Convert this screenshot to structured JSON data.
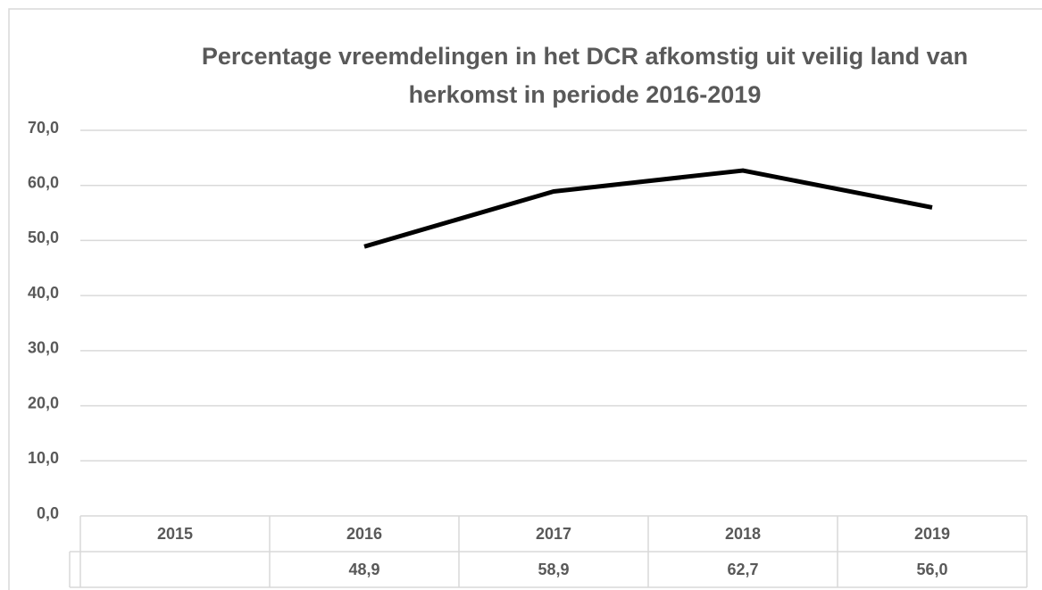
{
  "chart_data": {
    "type": "line",
    "title": "Percentage vreemdelingen in het DCR afkomstig uit veilig land van herkomst in periode 2016-2019",
    "categories": [
      "2015",
      "2016",
      "2017",
      "2018",
      "2019"
    ],
    "series": [
      {
        "name": null,
        "color": "#000000",
        "values": [
          null,
          48.9,
          58.9,
          62.7,
          56.0
        ],
        "value_labels": [
          null,
          "48,9",
          "58,9",
          "62,7",
          "56,0"
        ]
      }
    ],
    "ylim": [
      0,
      70
    ],
    "yticks": [
      {
        "value": 0,
        "label": "0,0"
      },
      {
        "value": 10,
        "label": "10,0"
      },
      {
        "value": 20,
        "label": "20,0"
      },
      {
        "value": 30,
        "label": "30,0"
      },
      {
        "value": 40,
        "label": "40,0"
      },
      {
        "value": 50,
        "label": "50,0"
      },
      {
        "value": 60,
        "label": "60,0"
      },
      {
        "value": 70,
        "label": "70,0"
      }
    ],
    "grid": true
  }
}
